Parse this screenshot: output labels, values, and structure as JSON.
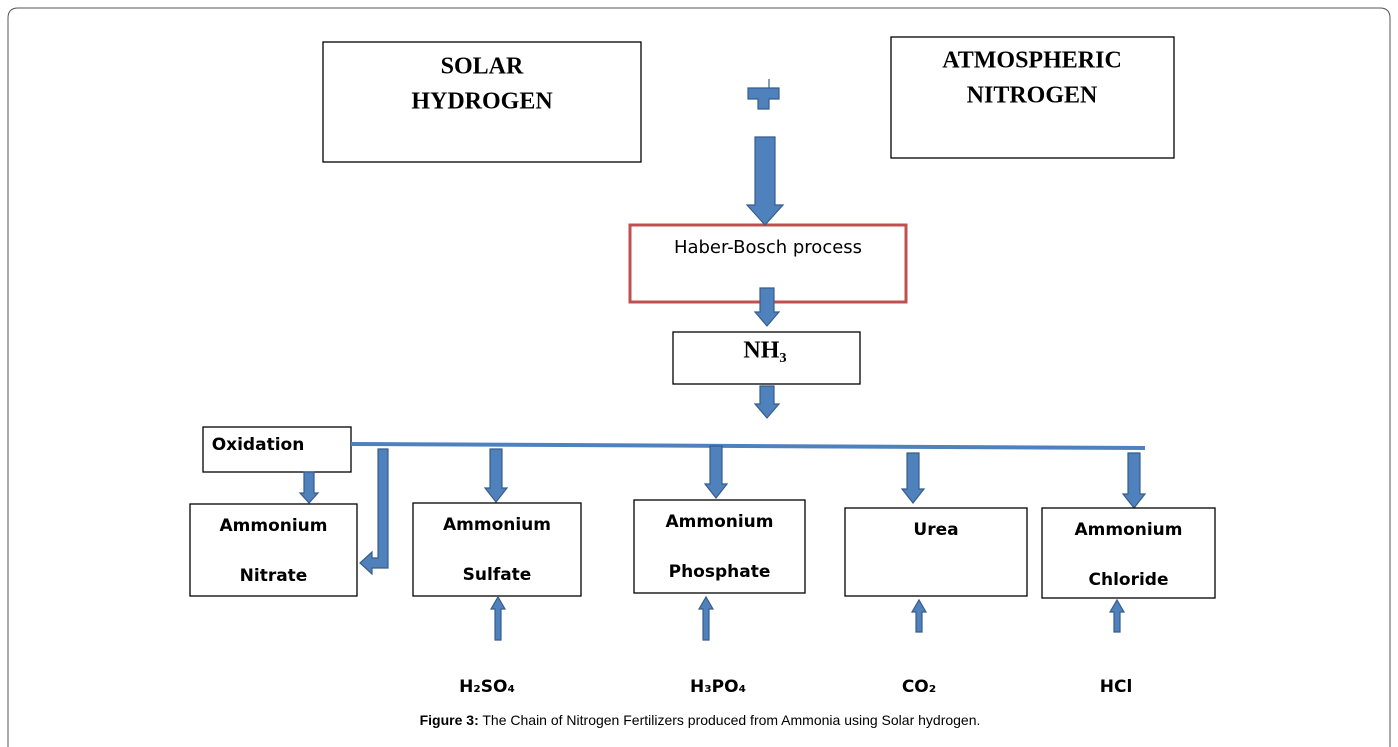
{
  "nodes": {
    "solar_hydrogen": {
      "lines": [
        "SOLAR",
        "HYDROGEN"
      ]
    },
    "atmospheric_nitrogen": {
      "lines": [
        "ATMOSPHERIC",
        "NITROGEN"
      ]
    },
    "haber_bosch": {
      "label": "Haber-Bosch process"
    },
    "nh3": {
      "label": "NH₃"
    },
    "oxidation": {
      "label": "Oxidation"
    },
    "products": [
      {
        "lines": [
          "Ammonium",
          "Nitrate"
        ]
      },
      {
        "lines": [
          "Ammonium",
          "Sulfate"
        ]
      },
      {
        "lines": [
          "Ammonium",
          "Phosphate"
        ]
      },
      {
        "lines": [
          "Urea"
        ]
      },
      {
        "lines": [
          "Ammonium",
          "Chloride"
        ]
      }
    ],
    "reagents": [
      "H₂SO₄",
      "H₃PO₄",
      "CO₂",
      "HCl"
    ]
  },
  "caption": {
    "label": "Figure 3:",
    "text": " The Chain of Nitrogen Fertilizers produced from Ammonia using Solar hydrogen."
  }
}
